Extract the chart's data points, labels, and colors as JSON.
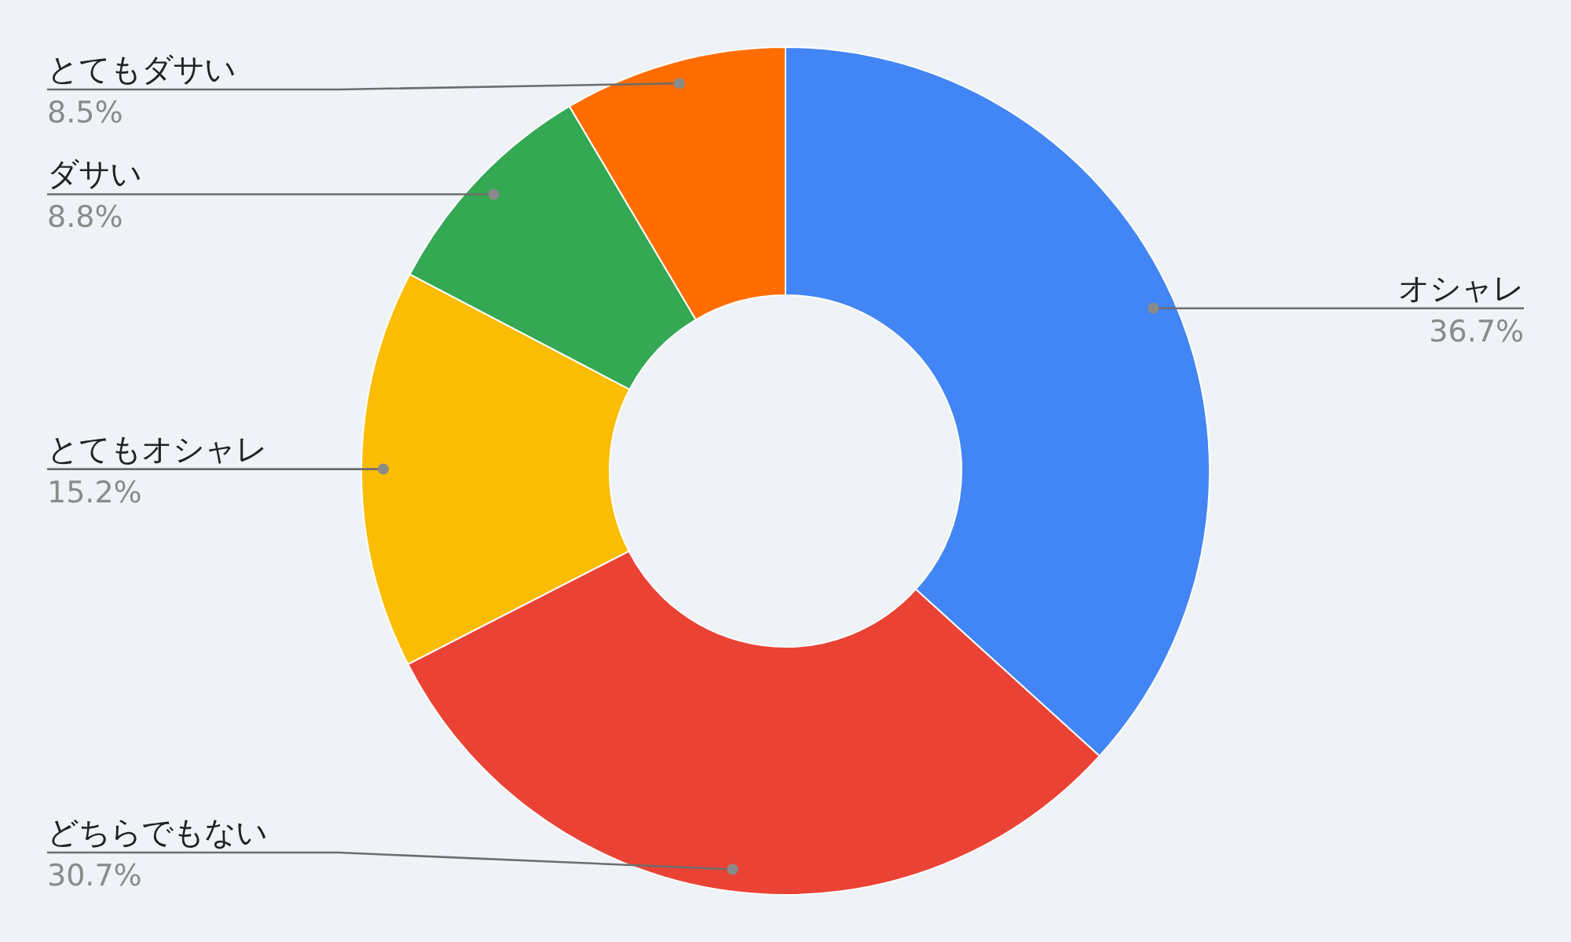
{
  "chart_data": {
    "type": "donut",
    "categories": [
      "オシャレ",
      "どちらでもない",
      "とてもオシャレ",
      "ダサい",
      "とてもダサい"
    ],
    "values": [
      36.7,
      30.7,
      15.2,
      8.8,
      8.5
    ],
    "colors": [
      "#4285f4",
      "#ea4335",
      "#fbbc04",
      "#34a853",
      "#ff6d01"
    ],
    "value_labels": [
      "36.7%",
      "30.7%",
      "15.2%",
      "8.8%",
      "8.5%"
    ]
  }
}
